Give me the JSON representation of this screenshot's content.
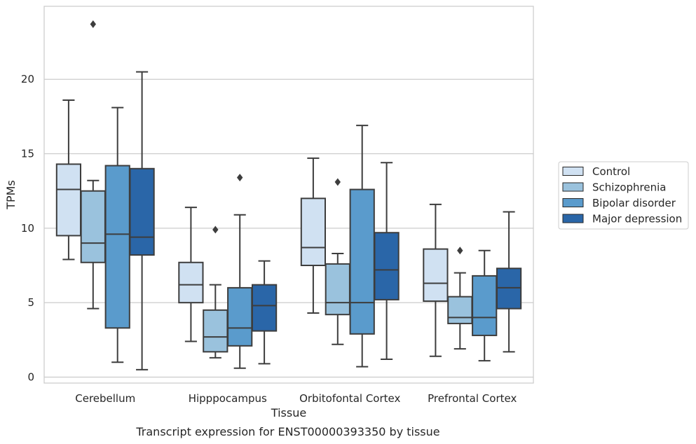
{
  "chart_data": {
    "type": "box",
    "xlabel": "Tissue",
    "ylabel": "TPMs",
    "caption": "Transcript expression for ENST00000393350 by tissue",
    "ylim": [
      -0.4,
      24.9
    ],
    "yticks": [
      0,
      5,
      10,
      15,
      20
    ],
    "grid": true,
    "legend_position": "right",
    "categories": [
      "Cerebellum",
      "Hipppocampus",
      "Orbitofontal Cortex",
      "Prefrontal Cortex"
    ],
    "series": [
      {
        "name": "Control",
        "color": "#d0e1f2",
        "boxes": [
          {
            "min": 7.9,
            "q1": 9.5,
            "median": 12.6,
            "q3": 14.3,
            "max": 18.6,
            "outliers": []
          },
          {
            "min": 2.4,
            "q1": 5.0,
            "median": 6.2,
            "q3": 7.7,
            "max": 11.4,
            "outliers": []
          },
          {
            "min": 4.3,
            "q1": 7.5,
            "median": 8.7,
            "q3": 12.0,
            "max": 14.7,
            "outliers": []
          },
          {
            "min": 1.4,
            "q1": 5.1,
            "median": 6.3,
            "q3": 8.6,
            "max": 11.6,
            "outliers": []
          }
        ]
      },
      {
        "name": "Schizophrenia",
        "color": "#9ac2dd",
        "boxes": [
          {
            "min": 4.6,
            "q1": 7.7,
            "median": 9.0,
            "q3": 12.5,
            "max": 13.2,
            "outliers": [
              23.7
            ]
          },
          {
            "min": 1.3,
            "q1": 1.7,
            "median": 2.7,
            "q3": 4.5,
            "max": 6.2,
            "outliers": [
              9.9
            ]
          },
          {
            "min": 2.2,
            "q1": 4.2,
            "median": 5.0,
            "q3": 7.6,
            "max": 8.3,
            "outliers": [
              13.1
            ]
          },
          {
            "min": 1.9,
            "q1": 3.6,
            "median": 4.0,
            "q3": 5.4,
            "max": 7.0,
            "outliers": [
              8.5
            ]
          }
        ]
      },
      {
        "name": "Bipolar disorder",
        "color": "#5a9bcc",
        "boxes": [
          {
            "min": 1.0,
            "q1": 3.3,
            "median": 9.6,
            "q3": 14.2,
            "max": 18.1,
            "outliers": []
          },
          {
            "min": 0.6,
            "q1": 2.1,
            "median": 3.3,
            "q3": 6.0,
            "max": 10.9,
            "outliers": [
              13.4
            ]
          },
          {
            "min": 0.7,
            "q1": 2.9,
            "median": 5.0,
            "q3": 12.6,
            "max": 16.9,
            "outliers": []
          },
          {
            "min": 1.1,
            "q1": 2.8,
            "median": 4.0,
            "q3": 6.8,
            "max": 8.5,
            "outliers": []
          }
        ]
      },
      {
        "name": "Major depression",
        "color": "#2a66a8",
        "boxes": [
          {
            "min": 0.5,
            "q1": 8.2,
            "median": 9.4,
            "q3": 14.0,
            "max": 20.5,
            "outliers": []
          },
          {
            "min": 0.9,
            "q1": 3.1,
            "median": 4.8,
            "q3": 6.2,
            "max": 7.8,
            "outliers": []
          },
          {
            "min": 1.2,
            "q1": 5.2,
            "median": 7.2,
            "q3": 9.7,
            "max": 14.4,
            "outliers": []
          },
          {
            "min": 1.7,
            "q1": 4.6,
            "median": 6.0,
            "q3": 7.3,
            "max": 11.1,
            "outliers": []
          }
        ]
      }
    ]
  }
}
